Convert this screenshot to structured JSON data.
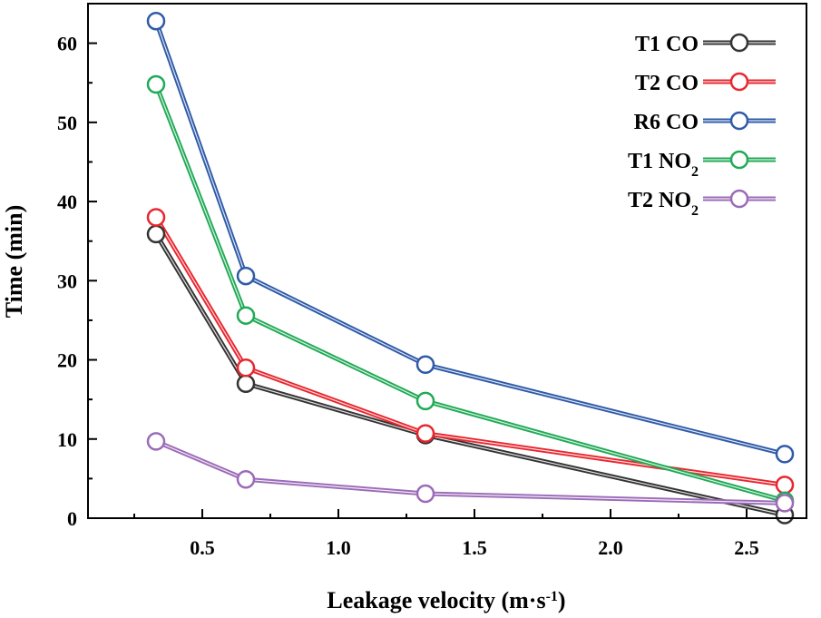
{
  "chart_data": {
    "type": "line",
    "title": "",
    "xlabel": {
      "main": "Leakage velocity (m·s",
      "sup": "-1",
      "end": ")"
    },
    "ylabel": "Time (min)",
    "xlim": [
      0.08,
      2.72
    ],
    "ylim": [
      0,
      65
    ],
    "x_ticks": [
      0.5,
      1.0,
      1.5,
      2.0,
      2.5
    ],
    "x_tick_labels": [
      "0.5",
      "1.0",
      "1.5",
      "2.0",
      "2.5"
    ],
    "y_ticks": [
      0,
      10,
      20,
      30,
      40,
      50,
      60
    ],
    "y_tick_labels": [
      "0",
      "10",
      "20",
      "30",
      "40",
      "50",
      "60"
    ],
    "x": [
      0.33,
      0.66,
      1.32,
      2.64
    ],
    "legend_position": "top-right",
    "series": [
      {
        "name": "T1 CO",
        "label": "T1 CO",
        "sub": "",
        "color": "#333333",
        "values": [
          35.9,
          17.0,
          10.5,
          0.4
        ]
      },
      {
        "name": "T2 CO",
        "label": "T2 CO",
        "sub": "",
        "color": "#e8262e",
        "values": [
          38.0,
          19.0,
          10.7,
          4.2
        ]
      },
      {
        "name": "R6 CO",
        "label": "R6 CO",
        "sub": "",
        "color": "#2e5aa8",
        "values": [
          62.8,
          30.6,
          19.4,
          8.1
        ]
      },
      {
        "name": "T1 NO2",
        "label": "T1 NO",
        "sub": "2",
        "color": "#1faa55",
        "values": [
          54.8,
          25.6,
          14.8,
          2.2
        ]
      },
      {
        "name": "T2 NO2",
        "label": "T2 NO",
        "sub": "2",
        "color": "#9b6ab8",
        "values": [
          9.7,
          4.9,
          3.1,
          1.9
        ]
      }
    ]
  }
}
